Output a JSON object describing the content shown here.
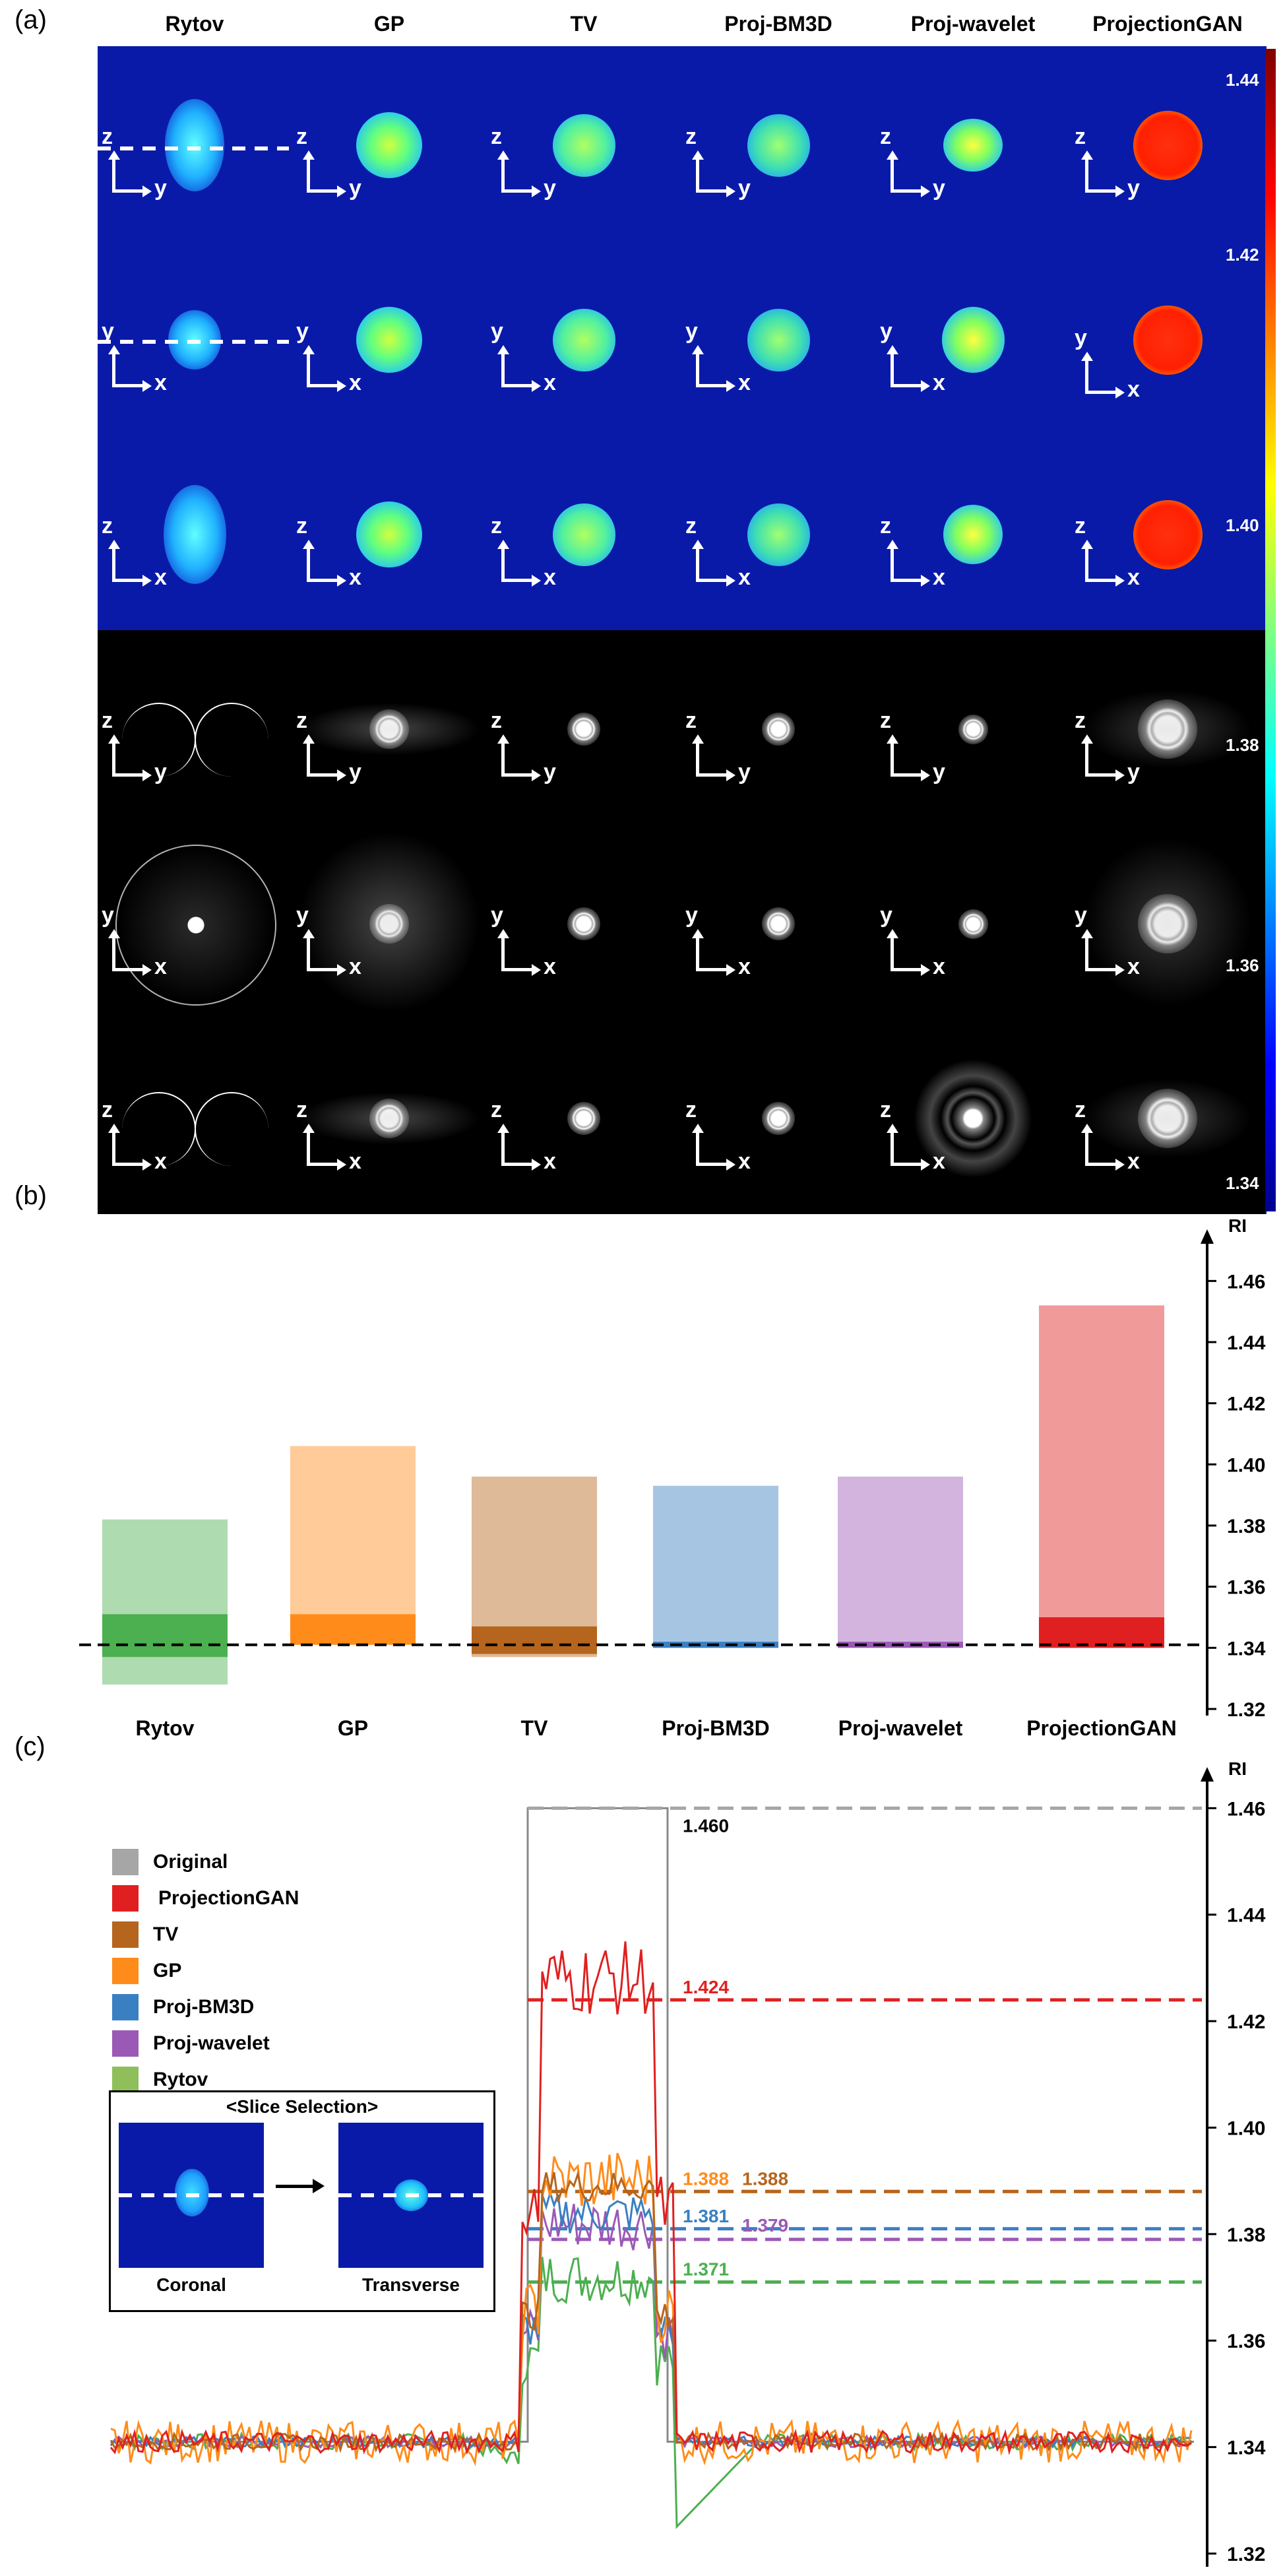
{
  "figure": {
    "panels": [
      "(a)",
      "(b)",
      "(c)"
    ],
    "methods": [
      "Rytov",
      "GP",
      "TV",
      "Proj-BM3D",
      "Proj-wavelet",
      "ProjectionGAN"
    ]
  },
  "panel_a": {
    "colorbar_ticks": [
      "1.44",
      "1.42",
      "1.40",
      "1.38",
      "1.36",
      "1.34"
    ],
    "row_axes": [
      {
        "v": "z",
        "h": "y"
      },
      {
        "v": "y",
        "h": "x"
      },
      {
        "v": "z",
        "h": "x"
      },
      {
        "v": "z",
        "h": "y"
      },
      {
        "v": "y",
        "h": "x"
      },
      {
        "v": "z",
        "h": "x"
      }
    ]
  },
  "chart_data": [
    {
      "type": "scatter",
      "panel": "(b)",
      "ylabel": "RI",
      "ylim": [
        1.32,
        1.47
      ],
      "yticks": [
        "1.46",
        "1.44",
        "1.42",
        "1.40",
        "1.38",
        "1.36",
        "1.34",
        "1.32"
      ],
      "reference_line": 1.341,
      "categories": [
        "Rytov",
        "GP",
        "TV",
        "Proj-BM3D",
        "Proj-wavelet",
        "ProjectionGAN"
      ],
      "ranges": [
        {
          "name": "Rytov",
          "min": 1.328,
          "max": 1.382,
          "dense_min": 1.337,
          "dense_max": 1.351,
          "color": "#4caf50"
        },
        {
          "name": "GP",
          "min": 1.341,
          "max": 1.406,
          "dense_min": 1.341,
          "dense_max": 1.351,
          "color": "#ff8c1a"
        },
        {
          "name": "TV",
          "min": 1.337,
          "max": 1.396,
          "dense_min": 1.338,
          "dense_max": 1.347,
          "color": "#b5651d"
        },
        {
          "name": "Proj-BM3D",
          "min": 1.34,
          "max": 1.393,
          "dense_min": 1.34,
          "dense_max": 1.342,
          "color": "#3a7fc1"
        },
        {
          "name": "Proj-wavelet",
          "min": 1.34,
          "max": 1.396,
          "dense_min": 1.34,
          "dense_max": 1.342,
          "color": "#9b59b6"
        },
        {
          "name": "ProjectionGAN",
          "min": 1.34,
          "max": 1.452,
          "dense_min": 1.34,
          "dense_max": 1.35,
          "color": "#e02020"
        }
      ]
    },
    {
      "type": "line",
      "panel": "(c)",
      "ylabel": "RI",
      "ylim": [
        1.32,
        1.465
      ],
      "yticks": [
        "1.46",
        "1.44",
        "1.42",
        "1.40",
        "1.38",
        "1.36",
        "1.34",
        "1.32"
      ],
      "legend": [
        "Original",
        "ProjectionGAN",
        "TV",
        "GP",
        "Proj-BM3D",
        "Proj-wavelet",
        "Rytov"
      ],
      "legend_colors": [
        "#a6a6a6",
        "#e02020",
        "#b5651d",
        "#ff8c1a",
        "#3a7fc1",
        "#9b59b6",
        "#8fbf5a"
      ],
      "mean_lines": [
        {
          "name": "Original",
          "value": 1.46,
          "label": "1.460",
          "color": "#a6a6a6"
        },
        {
          "name": "ProjectionGAN",
          "value": 1.424,
          "label": "1.424",
          "color": "#e02020"
        },
        {
          "name": "GP",
          "value": 1.388,
          "label": "1.388",
          "color": "#ff8c1a"
        },
        {
          "name": "TV",
          "value": 1.388,
          "label": "1.388",
          "color": "#b5651d"
        },
        {
          "name": "Proj-BM3D",
          "value": 1.381,
          "label": "1.381",
          "color": "#3a7fc1"
        },
        {
          "name": "Proj-wavelet",
          "value": 1.379,
          "label": "1.379",
          "color": "#9b59b6"
        },
        {
          "name": "Rytov",
          "value": 1.371,
          "label": "1.371",
          "color": "#4caf50"
        }
      ],
      "inset": {
        "title": "<Slice Selection>",
        "left_label": "Coronal",
        "right_label": "Transverse"
      }
    }
  ]
}
